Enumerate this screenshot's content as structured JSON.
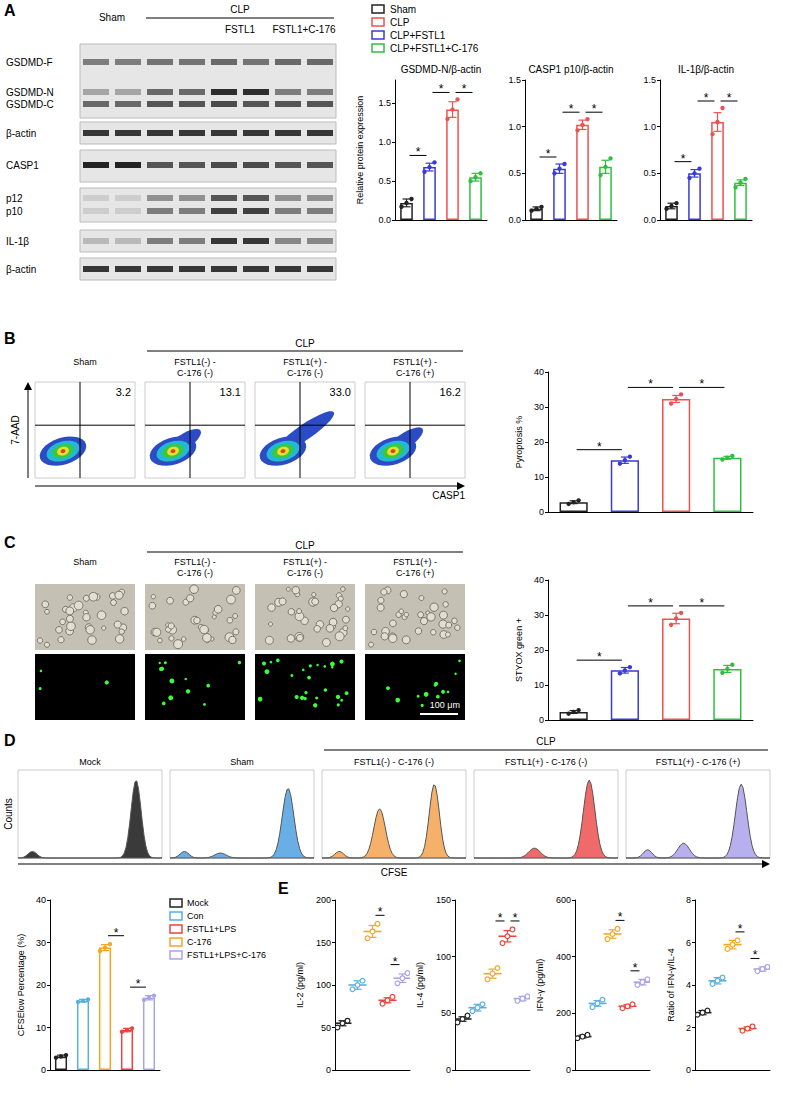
{
  "letters": [
    "A",
    "B",
    "C",
    "D",
    "E"
  ],
  "blot": {
    "lanes": {
      "sham": "Sham",
      "clp": "CLP",
      "fstl1": "FSTL1",
      "fstl1_c176": "FSTL1+C-176"
    },
    "rows": [
      "GSDMD-F",
      "GSDMD-N",
      "GSDMD-C",
      "β-actin",
      "CASP1",
      "p12",
      "p10",
      "IL-1β",
      "β-actin"
    ]
  },
  "legend_A": [
    {
      "name": "Sham",
      "color": "#222222"
    },
    {
      "name": "CLP",
      "color": "#f05050"
    },
    {
      "name": "CLP+FSTL1",
      "color": "#3a3ad8"
    },
    {
      "name": "CLP+FSTL1+C-176",
      "color": "#2fbf3f"
    }
  ],
  "flow": {
    "header": "CLP",
    "titles": [
      "Sham",
      "FSTL1(-) - C-176 (-)",
      "FSTL1(+) - C-176 (-)",
      "FSTL1(+) - C-176 (+)"
    ],
    "gates": [
      "3.2",
      "13.1",
      "33.0",
      "16.2"
    ],
    "x_label": "CASP1",
    "y_label": "7-AAD"
  },
  "microscopy": {
    "header": "CLP",
    "titles": [
      "Sham",
      "FSTL1(-) - C-176 (-)",
      "FSTL1(+) - C-176 (-)",
      "FSTL1(+) - C-176 (+)"
    ],
    "scale_bar": "100 μm"
  },
  "histograms": {
    "header": "CLP",
    "titles": [
      "Mock",
      "Sham",
      "FSTL1(-) - C-176 (-)",
      "FSTL1(+) - C-176 (-)",
      "FSTL1(+) - C-176 (+)"
    ],
    "colors": [
      "#3a3a3a",
      "#6aaee6",
      "#f5b06a",
      "#f06a6a",
      "#b8b0ee"
    ],
    "x_label": "CFSE",
    "y_label": "Counts"
  },
  "legend_D": [
    {
      "name": "Mock",
      "color": "#222222"
    },
    {
      "name": "Con",
      "color": "#5aaee0"
    },
    {
      "name": "FSTL1+LPS",
      "color": "#e8453c"
    },
    {
      "name": "C-176",
      "color": "#f5a623"
    },
    {
      "name": "FSTL1+LPS+C-176",
      "color": "#a9a3e8"
    }
  ],
  "chart_data": [
    {
      "type": "bar",
      "title": "GSDMD-N/β-actin",
      "y_label": "Relative protein expression",
      "categories": [
        null,
        null,
        null,
        null
      ],
      "values": [
        0.22,
        0.68,
        1.42,
        0.55
      ],
      "errors": [
        0.05,
        0.05,
        0.1,
        0.05
      ],
      "points": [
        [
          0.17,
          0.22,
          0.27
        ],
        [
          0.62,
          0.68,
          0.74
        ],
        [
          1.3,
          1.42,
          1.55
        ],
        [
          0.5,
          0.55,
          0.6
        ]
      ],
      "colors": [
        "#222222",
        "#3a3ad8",
        "#f05050",
        "#2fbf3f"
      ],
      "ylim": [
        0,
        1.8
      ],
      "yticks": [
        {
          "value": 0,
          "label": "0.0"
        },
        0.5,
        {
          "value": 1,
          "label": "1.0"
        },
        1.5
      ],
      "grid": false,
      "tick_labels": "y",
      "significance": [
        {
          "pair": [
            0,
            1
          ],
          "label": "*"
        },
        {
          "pair": [
            1,
            2
          ],
          "label": "*"
        },
        {
          "pair": [
            2,
            3
          ],
          "label": "*"
        }
      ]
    },
    {
      "type": "bar",
      "title": "CASP1 p10/β-actin",
      "categories": [
        null,
        null,
        null,
        null
      ],
      "values": [
        0.12,
        0.55,
        1.02,
        0.57
      ],
      "errors": [
        0.02,
        0.05,
        0.05,
        0.07
      ],
      "points": [
        [
          0.1,
          0.12,
          0.14
        ],
        [
          0.5,
          0.55,
          0.6
        ],
        [
          0.96,
          1.02,
          1.08
        ],
        [
          0.48,
          0.57,
          0.66
        ]
      ],
      "colors": [
        "#222222",
        "#3a3ad8",
        "#f05050",
        "#2fbf3f"
      ],
      "ylim": [
        0,
        1.5
      ],
      "yticks": [
        {
          "value": 0,
          "label": "0.0"
        },
        0.5,
        {
          "value": 1,
          "label": "1.0"
        },
        1.5
      ],
      "grid": false,
      "tick_labels": "y",
      "significance": [
        {
          "pair": [
            0,
            1
          ],
          "label": "*"
        },
        {
          "pair": [
            1,
            2
          ],
          "label": "*"
        },
        {
          "pair": [
            2,
            3
          ],
          "label": "*"
        }
      ]
    },
    {
      "type": "bar",
      "title": "IL-1β/β-actin",
      "categories": [
        null,
        null,
        null,
        null
      ],
      "values": [
        0.15,
        0.5,
        1.05,
        0.4
      ],
      "errors": [
        0.03,
        0.04,
        0.1,
        0.03
      ],
      "points": [
        [
          0.12,
          0.15,
          0.18
        ],
        [
          0.45,
          0.5,
          0.55
        ],
        [
          0.92,
          1.05,
          1.2
        ],
        [
          0.35,
          0.4,
          0.44
        ]
      ],
      "colors": [
        "#222222",
        "#3a3ad8",
        "#f05050",
        "#2fbf3f"
      ],
      "ylim": [
        0,
        1.5
      ],
      "yticks": [
        {
          "value": 0,
          "label": "0.0"
        },
        0.5,
        {
          "value": 1,
          "label": "1.0"
        },
        1.5
      ],
      "grid": false,
      "tick_labels": "y",
      "significance": [
        {
          "pair": [
            0,
            1
          ],
          "label": "*"
        },
        {
          "pair": [
            1,
            2
          ],
          "label": "*"
        },
        {
          "pair": [
            2,
            3
          ],
          "label": "*"
        }
      ]
    },
    {
      "type": "bar",
      "y_label": "Pyroptosis %",
      "categories": [
        null,
        null,
        null,
        null
      ],
      "values": [
        2.8,
        14.8,
        32.3,
        15.5
      ],
      "errors": [
        0.4,
        0.9,
        1.0,
        0.4
      ],
      "points": [
        [
          2.3,
          2.8,
          3.3
        ],
        [
          13.8,
          14.8,
          15.8
        ],
        [
          31,
          32.3,
          33.6
        ],
        [
          15,
          15.5,
          16
        ]
      ],
      "colors": [
        "#222222",
        "#3a3ad8",
        "#f05050",
        "#2fbf3f"
      ],
      "ylim": [
        0,
        40
      ],
      "yticks": [
        0,
        10,
        20,
        30,
        40
      ],
      "grid": false,
      "tick_labels": "y",
      "significance": [
        {
          "pair": [
            0,
            1
          ],
          "label": "*"
        },
        {
          "pair": [
            1,
            2
          ],
          "label": "*"
        },
        {
          "pair": [
            2,
            3
          ],
          "label": "*"
        }
      ]
    },
    {
      "type": "bar",
      "y_label": "STYOX green +",
      "categories": [
        null,
        null,
        null,
        null
      ],
      "values": [
        2.3,
        14.2,
        29,
        14.6
      ],
      "errors": [
        0.4,
        0.8,
        1.5,
        1.0
      ],
      "points": [
        [
          1.8,
          2.3,
          2.8
        ],
        [
          13.3,
          14.2,
          15.1
        ],
        [
          27.2,
          29,
          30.6
        ],
        [
          13.5,
          14.6,
          15.8
        ]
      ],
      "colors": [
        "#222222",
        "#3a3ad8",
        "#f05050",
        "#2fbf3f"
      ],
      "ylim": [
        0,
        40
      ],
      "yticks": [
        0,
        10,
        20,
        30,
        40
      ],
      "grid": false,
      "tick_labels": "y",
      "significance": [
        {
          "pair": [
            0,
            1
          ],
          "label": "*"
        },
        {
          "pair": [
            1,
            2
          ],
          "label": "*"
        },
        {
          "pair": [
            2,
            3
          ],
          "label": "*"
        }
      ]
    },
    {
      "type": "bar",
      "y_label": "CFSElow Percentage (%)",
      "categories": [
        null,
        null,
        null,
        null,
        null
      ],
      "values": [
        3.2,
        16.3,
        28.8,
        9.4,
        17
      ],
      "errors": [
        0.3,
        0.3,
        0.7,
        0.4,
        0.5
      ],
      "points": [
        [
          2.9,
          3.2,
          3.5
        ],
        [
          16,
          16.3,
          16.6
        ],
        [
          28,
          28.8,
          29.6
        ],
        [
          9,
          9.4,
          9.8
        ],
        [
          16.5,
          17,
          17.5
        ]
      ],
      "colors": [
        "#222222",
        "#5aaee0",
        "#f5a623",
        "#e8453c",
        "#a9a3e8"
      ],
      "ylim": [
        0,
        40
      ],
      "yticks": [
        0,
        10,
        20,
        30,
        40
      ],
      "grid": false,
      "tick_labels": "y",
      "significance": [
        {
          "pair": [
            2,
            3
          ],
          "label": "*"
        },
        {
          "pair": [
            3,
            4
          ],
          "label": "*"
        }
      ]
    },
    {
      "type": "scatter",
      "y_label": "IL-2 (pg/ml)",
      "categories": [
        null,
        null,
        null,
        null,
        null
      ],
      "values": [
        55,
        100,
        163,
        82,
        108
      ],
      "errors": [
        3,
        5,
        7,
        3,
        5
      ],
      "points": [
        [
          50,
          55,
          58
        ],
        [
          95,
          100,
          105
        ],
        [
          155,
          163,
          172
        ],
        [
          78,
          82,
          86
        ],
        [
          102,
          108,
          114
        ]
      ],
      "colors": [
        "#222222",
        "#5aaee0",
        "#f5a623",
        "#e8453c",
        "#a9a3e8"
      ],
      "ylim": [
        0,
        200
      ],
      "yticks": [
        0,
        50,
        100,
        150,
        200
      ],
      "grid": false,
      "tick_labels": "y",
      "significance": [
        {
          "pair": [
            2,
            3
          ],
          "label": "*"
        },
        {
          "pair": [
            3,
            4
          ],
          "label": "*"
        }
      ]
    },
    {
      "type": "scatter",
      "y_label": "IL-4 (pg/ml)",
      "categories": [
        null,
        null,
        null,
        null,
        null
      ],
      "values": [
        45,
        55,
        85,
        118,
        63
      ],
      "errors": [
        2,
        3,
        4,
        5,
        2
      ],
      "points": [
        [
          42,
          45,
          48
        ],
        [
          52,
          55,
          58
        ],
        [
          80,
          85,
          90
        ],
        [
          112,
          118,
          124
        ],
        [
          61,
          63,
          65
        ]
      ],
      "colors": [
        "#222222",
        "#5aaee0",
        "#f5a623",
        "#e8453c",
        "#a9a3e8"
      ],
      "ylim": [
        0,
        150
      ],
      "yticks": [
        0,
        50,
        100,
        150
      ],
      "grid": false,
      "tick_labels": "y",
      "significance": [
        {
          "pair": [
            2,
            3
          ],
          "label": "*"
        },
        {
          "pair": [
            3,
            4
          ],
          "label": "*"
        }
      ]
    },
    {
      "type": "scatter",
      "y_label": "IFN-γ (pg/ml)",
      "categories": [
        null,
        null,
        null,
        null,
        null
      ],
      "values": [
        118,
        235,
        480,
        225,
        310
      ],
      "errors": [
        5,
        10,
        15,
        6,
        10
      ],
      "points": [
        [
          112,
          118,
          124
        ],
        [
          222,
          235,
          248
        ],
        [
          462,
          480,
          498
        ],
        [
          218,
          225,
          232
        ],
        [
          300,
          310,
          320
        ]
      ],
      "colors": [
        "#222222",
        "#5aaee0",
        "#f5a623",
        "#e8453c",
        "#a9a3e8"
      ],
      "ylim": [
        0,
        600
      ],
      "yticks": [
        0,
        200,
        400,
        600
      ],
      "grid": false,
      "tick_labels": "y",
      "significance": [
        {
          "pair": [
            2,
            3
          ],
          "label": "*"
        },
        {
          "pair": [
            3,
            4
          ],
          "label": "*"
        }
      ]
    },
    {
      "type": "scatter",
      "y_label": "Ratio of IFN-γ/IL-4",
      "categories": [
        null,
        null,
        null,
        null,
        null
      ],
      "values": [
        2.7,
        4.2,
        5.9,
        1.95,
        4.75
      ],
      "errors": [
        0.1,
        0.15,
        0.2,
        0.08,
        0.1
      ],
      "points": [
        [
          2.6,
          2.7,
          2.8
        ],
        [
          4.05,
          4.2,
          4.35
        ],
        [
          5.7,
          5.9,
          6.1
        ],
        [
          1.85,
          1.95,
          2.05
        ],
        [
          4.65,
          4.75,
          4.85
        ]
      ],
      "colors": [
        "#222222",
        "#5aaee0",
        "#f5a623",
        "#e8453c",
        "#a9a3e8"
      ],
      "ylim": [
        0,
        8
      ],
      "yticks": [
        0,
        2,
        4,
        6,
        8
      ],
      "grid": false,
      "tick_labels": "y",
      "significance": [
        {
          "pair": [
            2,
            3
          ],
          "label": "*"
        },
        {
          "pair": [
            3,
            4
          ],
          "label": "*"
        }
      ]
    }
  ]
}
